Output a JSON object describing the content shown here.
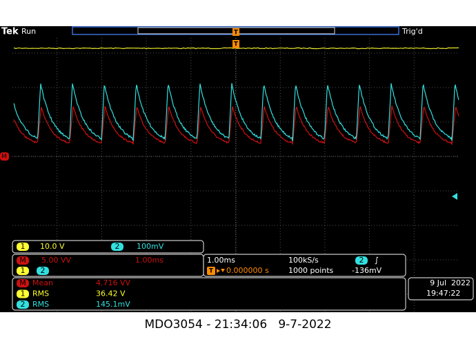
{
  "status_bar": {
    "brand": "Tek",
    "state": "Run",
    "trigger_state": "Trig'd",
    "trigger_position_marker": "T",
    "trigger_time_marker": "T"
  },
  "math_marker": "M",
  "channels": {
    "ch1_label": "1",
    "ch1_scale": "10.0 V",
    "ch2_label": "2",
    "ch2_scale": "100mV"
  },
  "math": {
    "label": "M",
    "scale": "5.00 VV",
    "timebase": "1.00ms",
    "source1": "1",
    "source2": "2"
  },
  "acquisition": {
    "timebase": "1.00ms",
    "sample_rate": "100kS/s",
    "trigger_source": "2",
    "trigger_slope": "∫",
    "trigger_label": "T",
    "position": "0.000000 s",
    "record_length": "1000 points",
    "trigger_level": "-136mV"
  },
  "measurements": [
    {
      "source": "M",
      "name": "Mean",
      "value": "4.716 VV"
    },
    {
      "source": "1",
      "name": "RMS",
      "value": "36.42 V"
    },
    {
      "source": "2",
      "name": "RMS",
      "value": "145.1mV"
    }
  ],
  "datetime": {
    "date": "9 Jul  2022",
    "time": "19:47:22"
  },
  "caption": "MDO3054 - 21:34:06   9-7-2022"
}
